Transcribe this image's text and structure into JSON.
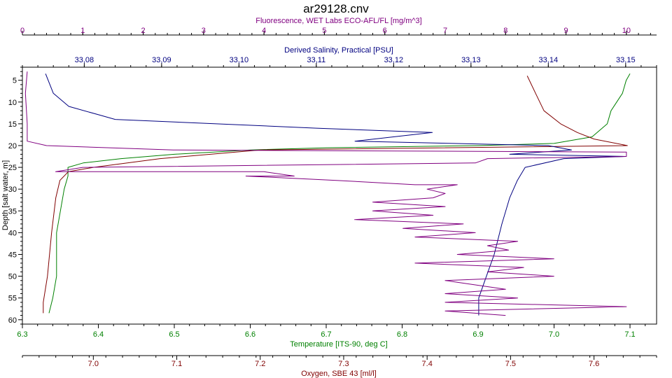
{
  "chart_data": {
    "type": "line",
    "title": "ar29128.cnv",
    "grid": false,
    "y_axis": {
      "label": "Depth [salt water, m]",
      "range": [
        2,
        61
      ],
      "inverted": true,
      "ticks": [
        5,
        10,
        15,
        20,
        25,
        30,
        35,
        40,
        45,
        50,
        55,
        60
      ]
    },
    "x_axes": [
      {
        "id": "fluorescence",
        "label": "Fluorescence, WET Labs ECO-AFL/FL [mg/m^3]",
        "position": "top-outer",
        "color": "#800080",
        "range": [
          0,
          10.5
        ],
        "ticks": [
          0,
          1,
          2,
          3,
          4,
          5,
          6,
          7,
          8,
          9,
          10
        ],
        "tick_labels": [
          "0",
          "1",
          "2",
          "3",
          "4",
          "5",
          "6",
          "7",
          "8",
          "9",
          "10"
        ]
      },
      {
        "id": "salinity",
        "label": "Derived Salinity, Practical [PSU]",
        "position": "top-inner",
        "color": "#000080",
        "range": [
          33.072,
          33.154
        ],
        "ticks": [
          33.08,
          33.09,
          33.1,
          33.11,
          33.12,
          33.13,
          33.14,
          33.15
        ],
        "tick_labels": [
          "33,08",
          "33,09",
          "33,10",
          "33,11",
          "33,12",
          "33,13",
          "33,14",
          "33,15"
        ]
      },
      {
        "id": "temperature",
        "label": "Temperature [ITS-90, deg C]",
        "position": "bottom-inner",
        "color": "#008000",
        "range": [
          6.3,
          7.135
        ],
        "ticks": [
          6.3,
          6.4,
          6.5,
          6.6,
          6.7,
          6.8,
          6.9,
          7.0,
          7.1
        ],
        "tick_labels": [
          "6.3",
          "6.4",
          "6.5",
          "6.6",
          "6.7",
          "6.8",
          "6.9",
          "7.0",
          "7.1"
        ]
      },
      {
        "id": "oxygen",
        "label": "Oxygen, SBE 43 [ml/l]",
        "position": "bottom-outer",
        "color": "#800000",
        "range": [
          6.915,
          7.675
        ],
        "ticks": [
          7.0,
          7.1,
          7.2,
          7.3,
          7.4,
          7.5,
          7.6
        ],
        "tick_labels": [
          "7.0",
          "7.1",
          "7.2",
          "7.3",
          "7.4",
          "7.5",
          "7.6"
        ]
      }
    ],
    "series": [
      {
        "axis": "temperature",
        "color": "#008000",
        "points": [
          [
            7.1,
            3.5
          ],
          [
            7.095,
            5
          ],
          [
            7.09,
            8
          ],
          [
            7.075,
            12
          ],
          [
            7.07,
            15
          ],
          [
            7.05,
            18
          ],
          [
            7.0,
            19.5
          ],
          [
            6.9,
            20
          ],
          [
            6.7,
            20.5
          ],
          [
            6.6,
            21
          ],
          [
            6.5,
            22
          ],
          [
            6.43,
            23
          ],
          [
            6.38,
            24
          ],
          [
            6.36,
            25
          ],
          [
            6.36,
            27
          ],
          [
            6.355,
            30
          ],
          [
            6.35,
            35
          ],
          [
            6.345,
            40
          ],
          [
            6.345,
            45
          ],
          [
            6.345,
            50
          ],
          [
            6.34,
            55
          ],
          [
            6.335,
            58.5
          ]
        ]
      },
      {
        "axis": "oxygen",
        "color": "#800000",
        "points": [
          [
            7.52,
            4
          ],
          [
            7.53,
            8
          ],
          [
            7.54,
            12
          ],
          [
            7.56,
            15
          ],
          [
            7.58,
            17
          ],
          [
            7.6,
            18.5
          ],
          [
            7.64,
            20
          ],
          [
            7.2,
            21
          ],
          [
            7.08,
            23
          ],
          [
            7.0,
            25
          ],
          [
            6.97,
            26
          ],
          [
            6.96,
            28
          ],
          [
            6.955,
            32
          ],
          [
            6.95,
            40
          ],
          [
            6.945,
            50
          ],
          [
            6.94,
            56
          ],
          [
            6.94,
            58.5
          ]
        ]
      },
      {
        "axis": "salinity",
        "color": "#000080",
        "points": [
          [
            33.075,
            3.5
          ],
          [
            33.076,
            8
          ],
          [
            33.078,
            11
          ],
          [
            33.082,
            13
          ],
          [
            33.084,
            14
          ],
          [
            33.11,
            16
          ],
          [
            33.125,
            17
          ],
          [
            33.115,
            19
          ],
          [
            33.14,
            20
          ],
          [
            33.143,
            21
          ],
          [
            33.135,
            22
          ],
          [
            33.15,
            22.5
          ],
          [
            33.142,
            23
          ],
          [
            33.137,
            25
          ],
          [
            33.136,
            28
          ],
          [
            33.135,
            32
          ],
          [
            33.134,
            38
          ],
          [
            33.133,
            45
          ],
          [
            33.132,
            50
          ],
          [
            33.131,
            55
          ],
          [
            33.131,
            59
          ]
        ]
      },
      {
        "axis": "fluorescence",
        "color": "#800080",
        "points": [
          [
            0.08,
            3
          ],
          [
            0.05,
            8
          ],
          [
            0.08,
            15
          ],
          [
            0.08,
            19
          ],
          [
            0.4,
            20
          ],
          [
            2.5,
            21
          ],
          [
            10,
            21.5
          ],
          [
            10,
            22.5
          ],
          [
            7.7,
            23
          ],
          [
            7.5,
            24
          ],
          [
            1,
            25
          ],
          [
            0.55,
            26
          ],
          [
            4,
            26
          ],
          [
            4.5,
            27
          ],
          [
            3.7,
            27
          ],
          [
            5.2,
            28
          ],
          [
            6.5,
            29
          ],
          [
            7.2,
            29
          ],
          [
            6.7,
            30
          ],
          [
            7,
            31
          ],
          [
            6.8,
            32
          ],
          [
            5.8,
            33
          ],
          [
            7,
            34
          ],
          [
            5.8,
            35
          ],
          [
            6.8,
            36
          ],
          [
            5.5,
            37
          ],
          [
            7.3,
            38
          ],
          [
            6.3,
            39
          ],
          [
            7.5,
            40
          ],
          [
            6.5,
            41
          ],
          [
            8.2,
            42
          ],
          [
            7.7,
            43
          ],
          [
            8.05,
            44
          ],
          [
            7.2,
            45
          ],
          [
            8.8,
            46
          ],
          [
            6.5,
            47
          ],
          [
            8.3,
            48
          ],
          [
            7.7,
            49
          ],
          [
            8.8,
            50
          ],
          [
            7,
            51
          ],
          [
            7.5,
            52
          ],
          [
            8,
            53
          ],
          [
            7,
            54
          ],
          [
            8.2,
            55
          ],
          [
            7,
            56
          ],
          [
            10,
            57
          ],
          [
            7,
            58
          ],
          [
            8,
            59
          ]
        ]
      }
    ]
  }
}
